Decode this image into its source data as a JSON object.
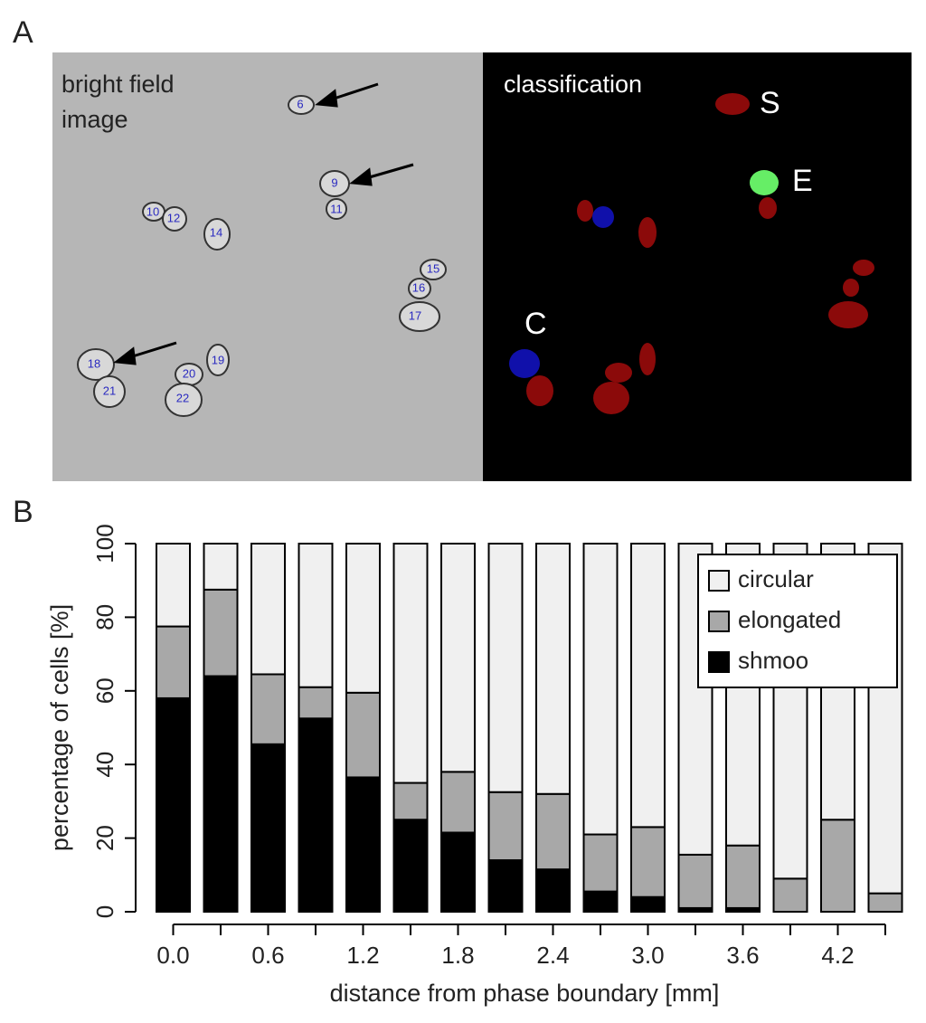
{
  "panels": [
    "A",
    "B"
  ],
  "image_panel": {
    "left_label": [
      "bright field",
      "image"
    ],
    "right_label": "classification",
    "cell_labels": [
      "6",
      "9",
      "11",
      "10",
      "12",
      "14",
      "15",
      "16",
      "17",
      "18",
      "21",
      "20",
      "22",
      "19"
    ],
    "class_labels": [
      "S",
      "E",
      "C"
    ]
  },
  "chart_data": {
    "type": "stacked_bar",
    "x_label": "distance from phase boundary [mm]",
    "y_label": "percentage of cells [%]",
    "categories": [
      "0.0",
      null,
      "0.6",
      null,
      "1.2",
      null,
      "1.8",
      null,
      "2.4",
      null,
      "3.0",
      null,
      "3.6",
      null,
      "4.2",
      null
    ],
    "series": [
      {
        "name": "shmoo",
        "color": "#000000",
        "values": [
          58,
          64,
          45.5,
          52.5,
          36.5,
          25,
          21.5,
          14,
          11.5,
          5.5,
          4,
          1,
          1,
          0,
          0,
          0
        ]
      },
      {
        "name": "elongated",
        "color": "#a8a8a8",
        "values": [
          19.5,
          23.5,
          19,
          8.5,
          23,
          10,
          16.5,
          18.5,
          20.5,
          15.5,
          19,
          14.5,
          17,
          9,
          25,
          5
        ]
      },
      {
        "name": "circular",
        "color": "#f0f0f0",
        "values": [
          22.5,
          12.5,
          35.5,
          39,
          40.5,
          65,
          62,
          67.5,
          68,
          79,
          77,
          84.5,
          82,
          91,
          75,
          95
        ]
      }
    ],
    "ylim": [
      0,
      100
    ],
    "yticks": [
      0,
      20,
      40,
      60,
      80,
      100
    ],
    "legend": "top-right"
  }
}
